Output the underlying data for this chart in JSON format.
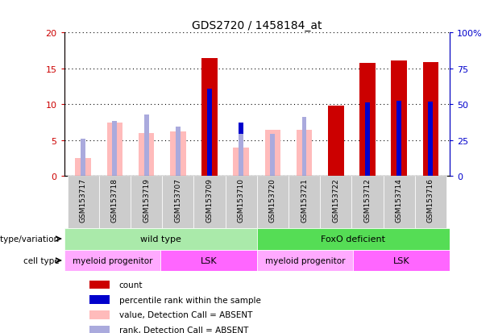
{
  "title": "GDS2720 / 1458184_at",
  "samples": [
    "GSM153717",
    "GSM153718",
    "GSM153719",
    "GSM153707",
    "GSM153709",
    "GSM153710",
    "GSM153720",
    "GSM153721",
    "GSM153722",
    "GSM153712",
    "GSM153714",
    "GSM153716"
  ],
  "count_values": [
    null,
    null,
    null,
    null,
    16.5,
    null,
    null,
    null,
    9.8,
    15.8,
    16.1,
    15.9
  ],
  "rank_values": [
    null,
    null,
    null,
    null,
    12.2,
    7.5,
    null,
    null,
    null,
    10.3,
    10.5,
    10.4
  ],
  "absent_value": [
    2.5,
    7.5,
    6.0,
    6.2,
    null,
    4.0,
    6.5,
    6.5,
    null,
    null,
    null,
    null
  ],
  "absent_rank": [
    5.2,
    7.7,
    8.6,
    6.9,
    null,
    5.9,
    5.9,
    8.2,
    null,
    null,
    null,
    null
  ],
  "ylim_left": [
    0,
    20
  ],
  "ylim_right": [
    0,
    100
  ],
  "yticks_left": [
    0,
    5,
    10,
    15,
    20
  ],
  "yticks_right": [
    0,
    25,
    50,
    75,
    100
  ],
  "ytick_labels_right": [
    "0",
    "25",
    "50",
    "75",
    "100%"
  ],
  "color_count": "#cc0000",
  "color_rank": "#0000cc",
  "color_absent_value": "#ffbbbb",
  "color_absent_rank": "#aaaadd",
  "genotype_wild": "wild type",
  "genotype_foxo": "FoxO deficient",
  "celltype_myeloid": "myeloid progenitor",
  "celltype_lsk": "LSK",
  "color_light_green": "#aaeaaa",
  "color_bright_green": "#55dd55",
  "color_light_magenta": "#ffaaff",
  "color_bright_magenta": "#ff66ff",
  "color_gray": "#cccccc",
  "legend_labels": [
    "count",
    "percentile rank within the sample",
    "value, Detection Call = ABSENT",
    "rank, Detection Call = ABSENT"
  ],
  "legend_colors": [
    "#cc0000",
    "#0000cc",
    "#ffbbbb",
    "#aaaadd"
  ],
  "wild_cols": 6,
  "foxo_cols": 6,
  "myeloid_wild_cols": 3,
  "lsk_wild_cols": 3,
  "myeloid_foxo_cols": 3,
  "lsk_foxo_cols": 3
}
